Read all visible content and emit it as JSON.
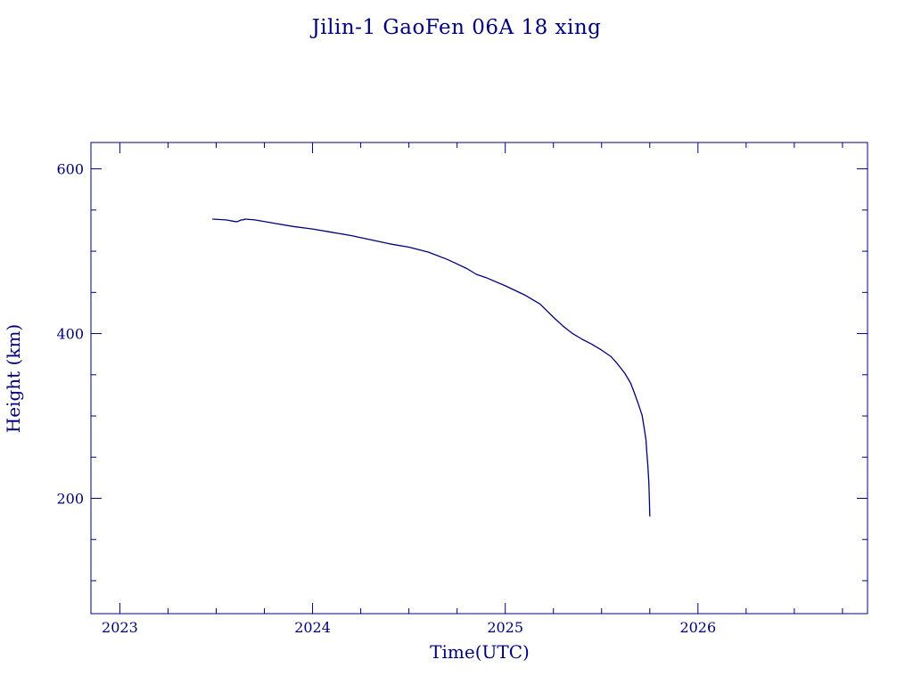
{
  "chart_data": {
    "type": "line",
    "title": "Jilin-1 GaoFen 06A 18 xing",
    "xlabel": "Time(UTC)",
    "ylabel": "Height (km)",
    "xlim": [
      2022.85,
      2026.88
    ],
    "ylim": [
      60,
      632
    ],
    "x_major_ticks": [
      2023,
      2024,
      2025,
      2026
    ],
    "x_minor_step": 0.25,
    "y_major_ticks": [
      200,
      400,
      600
    ],
    "y_minor_step": 50,
    "x_tick_labels": [
      "2023",
      "2024",
      "2025",
      "2026"
    ],
    "y_tick_labels": [
      "200",
      "400",
      "600"
    ],
    "grid": false,
    "series": [
      {
        "x": [
          2023.48,
          2023.55,
          2023.6,
          2023.61,
          2023.63,
          2023.64,
          2023.65,
          2023.7,
          2023.8,
          2023.9,
          2024.0,
          2024.1,
          2024.2,
          2024.3,
          2024.4,
          2024.5,
          2024.6,
          2024.7,
          2024.8,
          2024.85,
          2024.9,
          2025.0,
          2025.1,
          2025.18,
          2025.25,
          2025.3,
          2025.35,
          2025.4,
          2025.45,
          2025.5,
          2025.55,
          2025.58,
          2025.62,
          2025.65,
          2025.67,
          2025.69,
          2025.71,
          2025.72,
          2025.73,
          2025.735,
          2025.74,
          2025.745,
          2025.748,
          2025.75
        ],
        "y": [
          539,
          538,
          536,
          536,
          538,
          538,
          539,
          538,
          534,
          530,
          527,
          523,
          519,
          514,
          509,
          505,
          499,
          490,
          479,
          472,
          468,
          458,
          447,
          436,
          420,
          409,
          400,
          393,
          387,
          380,
          372,
          364,
          352,
          340,
          328,
          315,
          301,
          287,
          271,
          255,
          240,
          220,
          200,
          178
        ]
      }
    ]
  }
}
